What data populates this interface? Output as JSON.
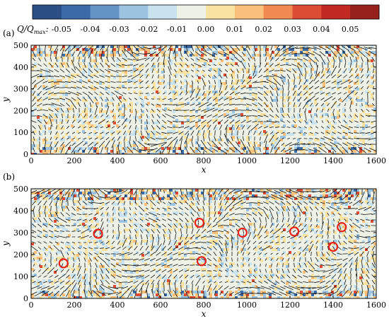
{
  "chart_data": {
    "type": "heatmap",
    "colorbar": {
      "title": "Q/Q_max:",
      "title_main": "Q/Q",
      "title_sub": "max",
      "title_colon": ":",
      "ticks": [
        "-0.05",
        "-0.04",
        "-0.03",
        "-0.02",
        "-0.01",
        "0.00",
        "0.01",
        "0.02",
        "0.03",
        "0.04",
        "0.05"
      ],
      "colors": [
        "#2c4f86",
        "#3b6aa8",
        "#6493c6",
        "#9cc3e0",
        "#c9e2ef",
        "#eef2e6",
        "#f8e3a3",
        "#f8c07a",
        "#f28a54",
        "#dc4b34",
        "#c02a22",
        "#97221d"
      ]
    },
    "panels": [
      {
        "label": "(a)",
        "xlabel": "x",
        "ylabel": "y",
        "xlim": [
          0,
          1600
        ],
        "ylim": [
          0,
          500
        ],
        "xticks": [
          "0",
          "200",
          "400",
          "600",
          "800",
          "1000",
          "1200",
          "1400",
          "1600"
        ],
        "yticks": [
          "0",
          "100",
          "200",
          "300",
          "400",
          "500"
        ],
        "markers": []
      },
      {
        "label": "(b)",
        "xlabel": "x",
        "ylabel": "y",
        "xlim": [
          0,
          1600
        ],
        "ylim": [
          0,
          500
        ],
        "xticks": [
          "0",
          "200",
          "400",
          "600",
          "800",
          "1000",
          "1200",
          "1400",
          "1600"
        ],
        "yticks": [
          "0",
          "100",
          "200",
          "300",
          "400",
          "500"
        ],
        "markers": [
          {
            "x": 150,
            "y": 160
          },
          {
            "x": 310,
            "y": 295
          },
          {
            "x": 780,
            "y": 345
          },
          {
            "x": 790,
            "y": 170
          },
          {
            "x": 980,
            "y": 300
          },
          {
            "x": 1220,
            "y": 305
          },
          {
            "x": 1400,
            "y": 235
          },
          {
            "x": 1440,
            "y": 325
          }
        ],
        "marker_color": "#e8211b"
      }
    ]
  }
}
